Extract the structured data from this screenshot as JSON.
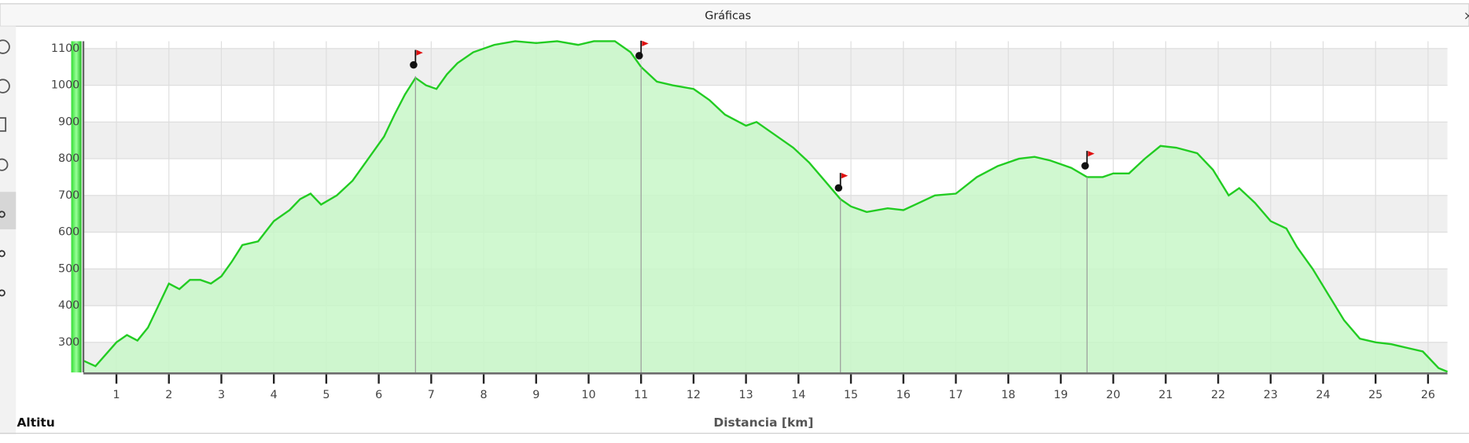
{
  "window_title": "Gráficas",
  "chart_data": {
    "type": "area",
    "xlabel": "Distancia [km]",
    "ylabel": "Altitu",
    "color": "#22cc22",
    "fill": "#c8f7c8",
    "grid": true,
    "xlim": [
      0.37,
      26.37
    ],
    "ylim": [
      218,
      1120
    ],
    "xticks": [
      1,
      2,
      3,
      4,
      5,
      6,
      7,
      8,
      9,
      10,
      11,
      12,
      13,
      14,
      15,
      16,
      17,
      18,
      19,
      20,
      21,
      22,
      23,
      24,
      25,
      26
    ],
    "yticks": [
      300,
      400,
      500,
      600,
      700,
      800,
      900,
      1000,
      1100
    ],
    "x": [
      0.37,
      0.6,
      1.0,
      1.2,
      1.4,
      1.6,
      1.8,
      2.0,
      2.2,
      2.4,
      2.6,
      2.8,
      3.0,
      3.2,
      3.4,
      3.7,
      4.0,
      4.3,
      4.5,
      4.7,
      4.9,
      5.2,
      5.5,
      5.8,
      6.1,
      6.3,
      6.5,
      6.7,
      6.9,
      7.1,
      7.3,
      7.5,
      7.8,
      8.2,
      8.6,
      9.0,
      9.4,
      9.8,
      10.1,
      10.5,
      10.8,
      11.0,
      11.3,
      11.6,
      12.0,
      12.3,
      12.6,
      13.0,
      13.2,
      13.5,
      13.9,
      14.2,
      14.5,
      14.8,
      15.0,
      15.3,
      15.7,
      16.0,
      16.3,
      16.6,
      17.0,
      17.4,
      17.8,
      18.2,
      18.5,
      18.8,
      19.2,
      19.5,
      19.8,
      20.0,
      20.3,
      20.6,
      20.9,
      21.2,
      21.6,
      21.9,
      22.2,
      22.4,
      22.7,
      23.0,
      23.3,
      23.5,
      23.8,
      24.1,
      24.4,
      24.7,
      25.0,
      25.3,
      25.6,
      25.9,
      26.2,
      26.37
    ],
    "values": [
      250,
      235,
      300,
      320,
      305,
      340,
      400,
      460,
      445,
      470,
      470,
      460,
      480,
      520,
      565,
      575,
      630,
      660,
      690,
      705,
      675,
      700,
      740,
      800,
      860,
      920,
      975,
      1020,
      1000,
      990,
      1030,
      1060,
      1090,
      1110,
      1120,
      1115,
      1120,
      1110,
      1120,
      1120,
      1090,
      1050,
      1010,
      1000,
      990,
      960,
      920,
      890,
      900,
      870,
      830,
      790,
      740,
      690,
      670,
      655,
      665,
      660,
      680,
      700,
      705,
      750,
      780,
      800,
      805,
      795,
      775,
      750,
      750,
      760,
      760,
      800,
      835,
      830,
      815,
      770,
      700,
      720,
      680,
      630,
      610,
      560,
      500,
      430,
      360,
      310,
      300,
      295,
      285,
      275,
      230,
      220
    ],
    "waypoints_x": [
      6.7,
      11.0,
      14.8,
      19.5
    ],
    "waypoints_y": [
      1025,
      1050,
      690,
      750
    ]
  }
}
